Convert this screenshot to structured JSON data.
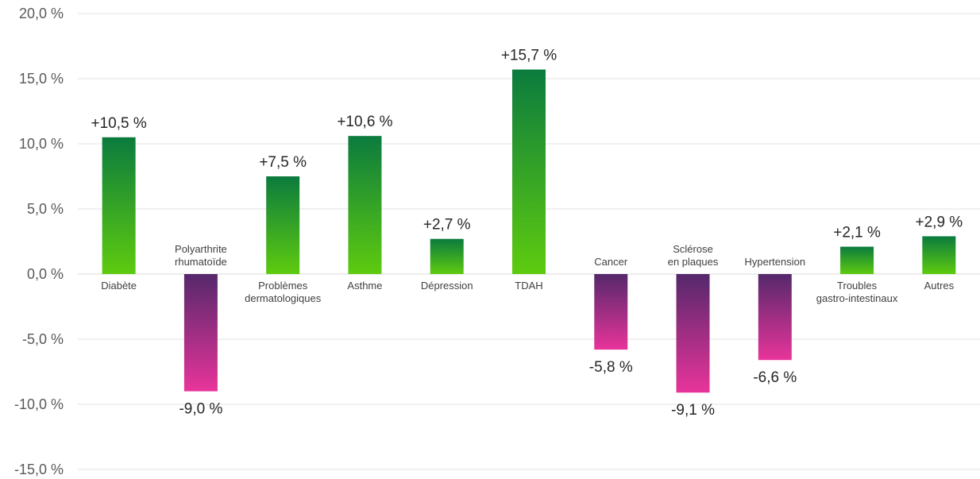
{
  "chart_data": {
    "type": "bar",
    "title": "",
    "xlabel": "",
    "ylabel": "",
    "ylim": [
      -15,
      20
    ],
    "y_ticks": [
      20,
      15,
      10,
      5,
      0,
      -5,
      -10,
      -15
    ],
    "y_tick_labels": [
      "20,0 %",
      "15,0 %",
      "10,0 %",
      "5,0 %",
      "0,0 %",
      "-5,0 %",
      "-10,0 %",
      "-15,0 %"
    ],
    "grid": true,
    "legend": "none",
    "categories": [
      [
        "Diabète"
      ],
      [
        "Polyarthrite",
        "rhumatoïde"
      ],
      [
        "Problèmes",
        "dermatologiques"
      ],
      [
        "Asthme"
      ],
      [
        "Dépression"
      ],
      [
        "TDAH"
      ],
      [
        "Cancer"
      ],
      [
        "Sclérose",
        "en plaques"
      ],
      [
        "Hypertension"
      ],
      [
        "Troubles",
        "gastro-intestinaux"
      ],
      [
        "Autres"
      ]
    ],
    "values": [
      10.5,
      -9.0,
      7.5,
      10.6,
      2.7,
      15.7,
      -5.8,
      -9.1,
      -6.6,
      2.1,
      2.9
    ],
    "data_labels": [
      "+10,5 %",
      "-9,0 %",
      "+7,5 %",
      "+10,6 %",
      "+2,7 %",
      "+15,7 %",
      "-5,8 %",
      "-9,1 %",
      "-6,6 %",
      "+2,1 %",
      "+2,9 %"
    ],
    "colors": {
      "positive_top": "#0b7b3e",
      "positive_bottom": "#5ecb0f",
      "negative_top": "#55286b",
      "negative_bottom": "#e8349a",
      "grid": "#e3e3e3"
    }
  }
}
